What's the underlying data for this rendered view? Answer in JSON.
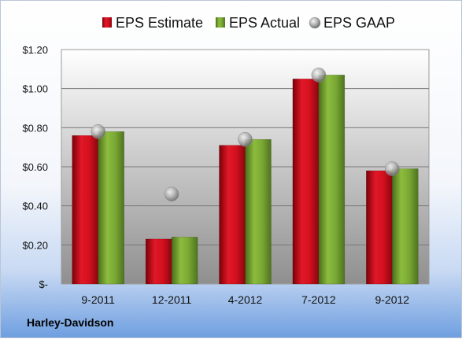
{
  "company": "Harley-Davidson",
  "chart_data": {
    "type": "bar",
    "categories": [
      "9-2011",
      "12-2011",
      "4-2012",
      "7-2012",
      "9-2012"
    ],
    "series": [
      {
        "name": "EPS Estimate",
        "type": "bar",
        "color": "#c8101e",
        "values": [
          0.76,
          0.23,
          0.71,
          1.05,
          0.58
        ]
      },
      {
        "name": "EPS Actual",
        "type": "bar",
        "color": "#74a030",
        "values": [
          0.78,
          0.24,
          0.74,
          1.07,
          0.59
        ]
      },
      {
        "name": "EPS GAAP",
        "type": "scatter",
        "color": "#a8a8a8",
        "values": [
          0.78,
          0.46,
          0.74,
          1.07,
          0.59
        ]
      }
    ],
    "yticks": [
      "$-",
      "$0.20",
      "$0.40",
      "$0.60",
      "$0.80",
      "$1.00",
      "$1.20"
    ],
    "ylim": [
      0,
      1.2
    ],
    "grid": true,
    "legend": "top"
  }
}
